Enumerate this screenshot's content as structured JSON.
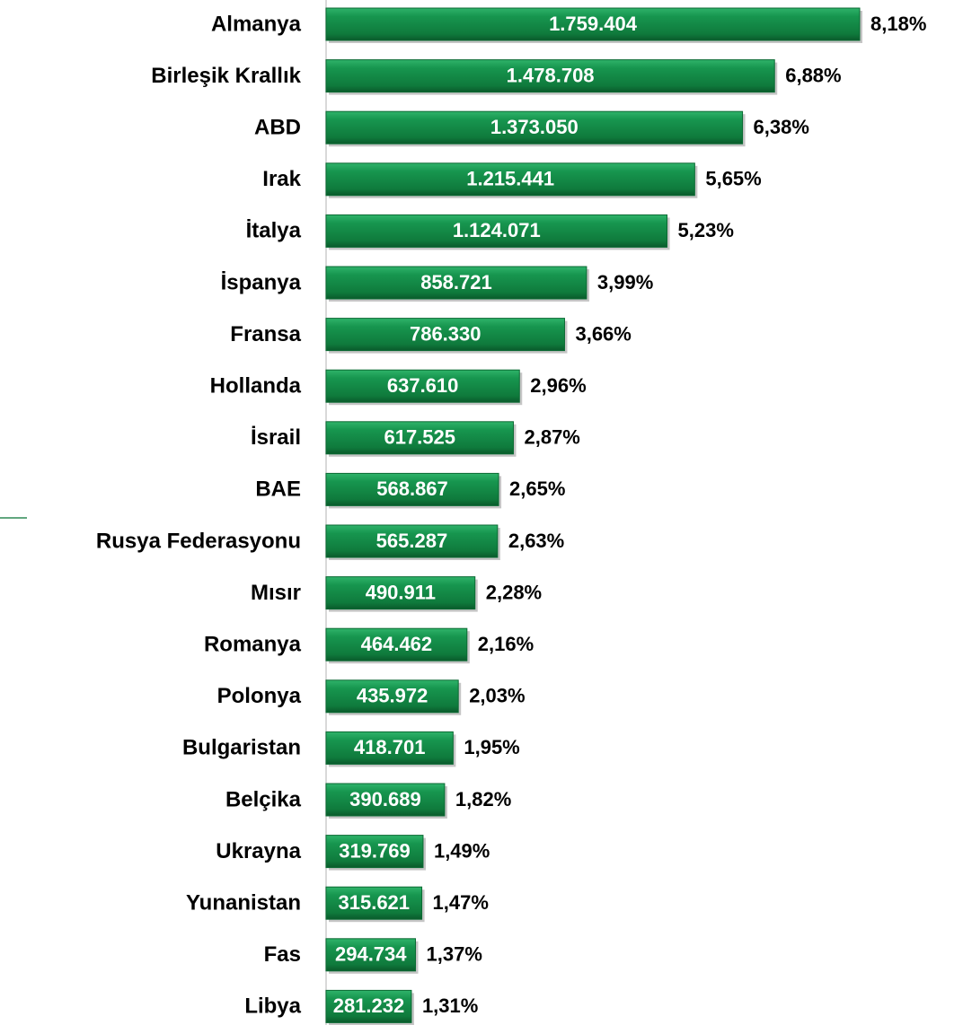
{
  "chart_data": {
    "type": "bar",
    "orientation": "horizontal",
    "color": "#138a45",
    "categories": [
      "Almanya",
      "Birleşik Krallık",
      "ABD",
      "Irak",
      "İtalya",
      "İspanya",
      "Fransa",
      "Hollanda",
      "İsrail",
      "BAE",
      "Rusya Federasyonu",
      "Mısır",
      "Romanya",
      "Polonya",
      "Bulgaristan",
      "Belçika",
      "Ukrayna",
      "Yunanistan",
      "Fas",
      "Libya"
    ],
    "values": [
      1759404,
      1478708,
      1373050,
      1215441,
      1124071,
      858721,
      786330,
      637610,
      617525,
      568867,
      565287,
      490911,
      464462,
      435972,
      418701,
      390689,
      319769,
      315621,
      294734,
      281232
    ],
    "value_labels": [
      "1.759.404",
      "1.478.708",
      "1.373.050",
      "1.215.441",
      "1.124.071",
      "858.721",
      "786.330",
      "637.610",
      "617.525",
      "568.867",
      "565.287",
      "490.911",
      "464.462",
      "435.972",
      "418.701",
      "390.689",
      "319.769",
      "315.621",
      "294.734",
      "281.232"
    ],
    "shares": [
      8.18,
      6.88,
      6.38,
      5.65,
      5.23,
      3.99,
      3.66,
      2.96,
      2.87,
      2.65,
      2.63,
      2.28,
      2.16,
      2.03,
      1.95,
      1.82,
      1.49,
      1.47,
      1.37,
      1.31
    ],
    "share_labels": [
      "8,18%",
      "6,88%",
      "6,38%",
      "5,65%",
      "5,23%",
      "3,99%",
      "3,66%",
      "2,96%",
      "2,87%",
      "2,65%",
      "2,63%",
      "2,28%",
      "2,16%",
      "2,03%",
      "1,95%",
      "1,82%",
      "1,49%",
      "1,47%",
      "1,37%",
      "1,31%"
    ]
  }
}
